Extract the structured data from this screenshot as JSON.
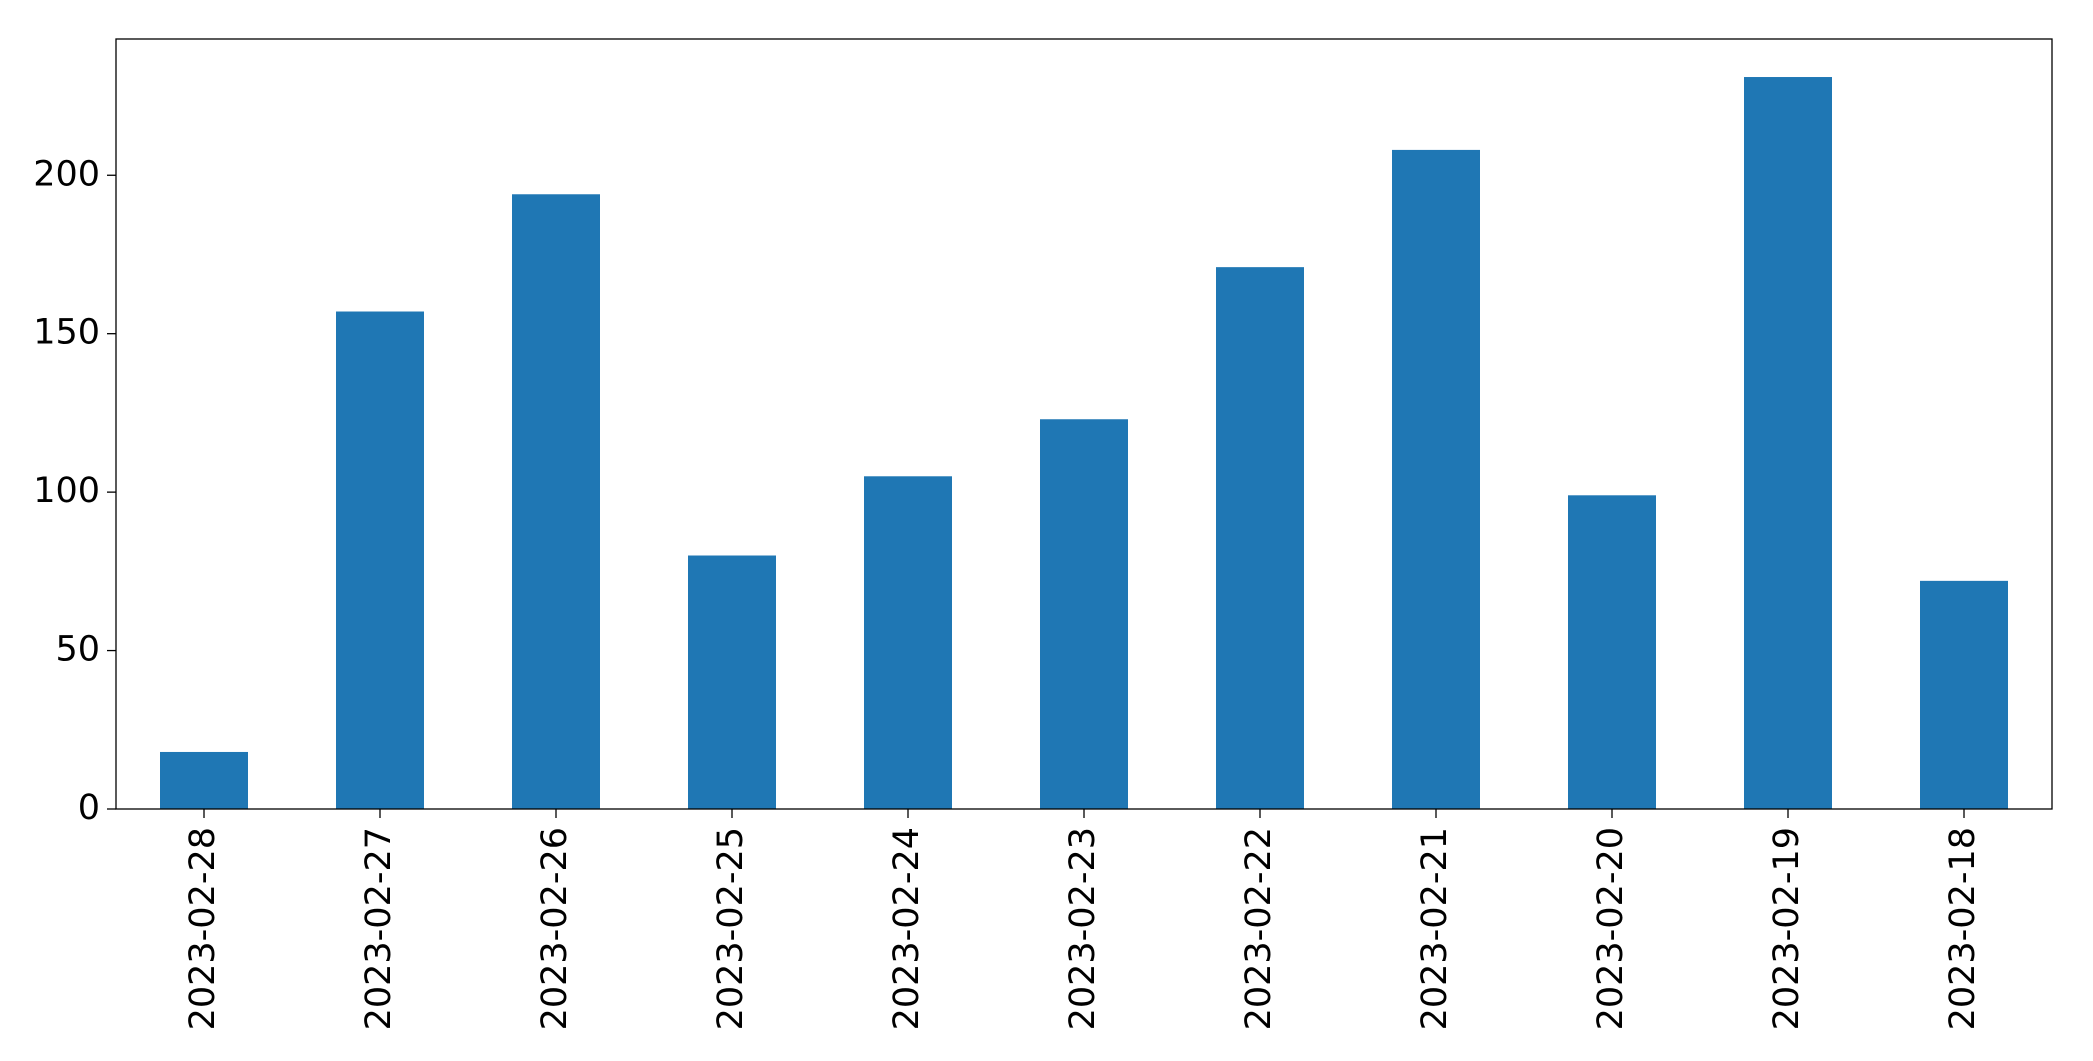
{
  "chart_data": {
    "type": "bar",
    "categories": [
      "2023-02-28",
      "2023-02-27",
      "2023-02-26",
      "2023-02-25",
      "2023-02-24",
      "2023-02-23",
      "2023-02-22",
      "2023-02-21",
      "2023-02-20",
      "2023-02-19",
      "2023-02-18"
    ],
    "values": [
      18,
      157,
      194,
      80,
      105,
      123,
      171,
      208,
      99,
      231,
      72
    ],
    "color": "#1f77b4",
    "ylim": [
      0,
      243
    ],
    "yticks": [
      0,
      50,
      100,
      150,
      200
    ],
    "grid": false
  }
}
